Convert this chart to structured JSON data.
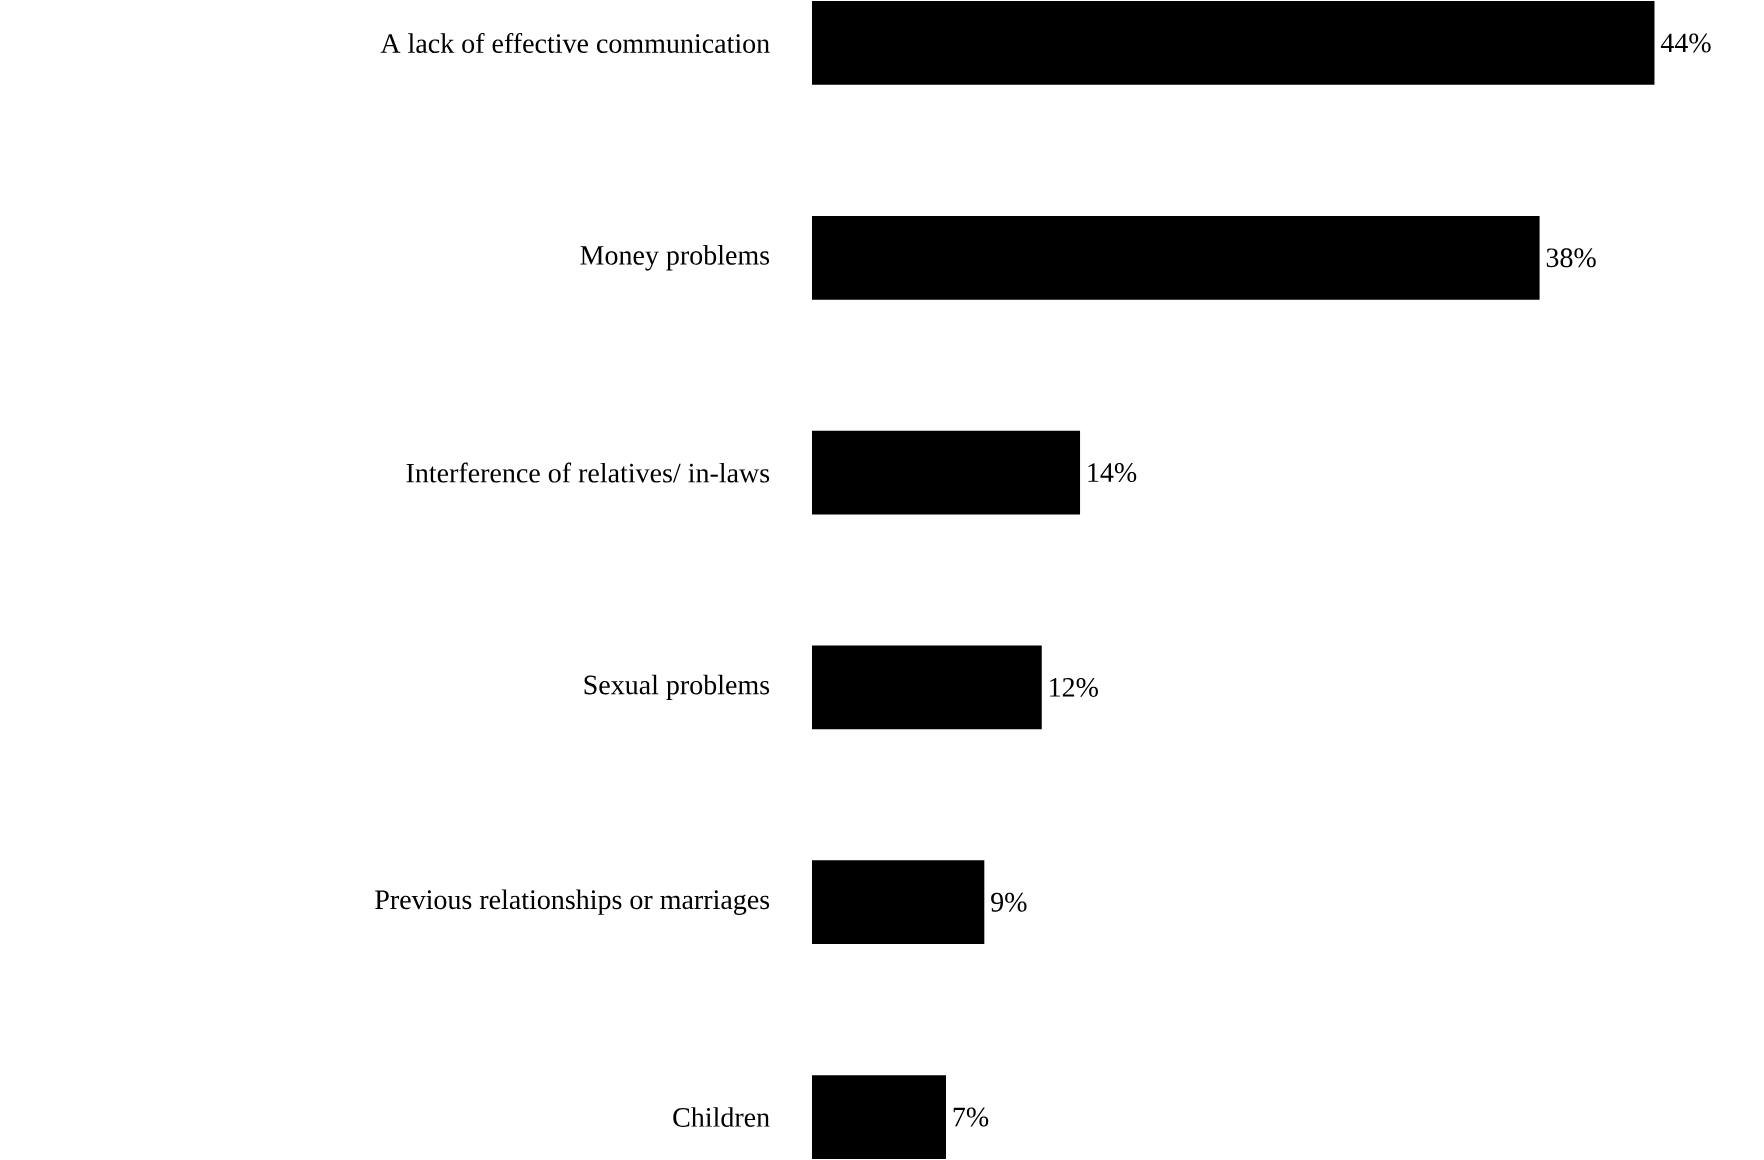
{
  "chart_data": {
    "type": "bar",
    "orientation": "horizontal",
    "categories": [
      "A lack of effective communication",
      "Money problems",
      "Interference of relatives/ in-laws",
      "Sexual problems",
      "Previous relationships or marriages",
      "Children"
    ],
    "values": [
      44,
      38,
      14,
      12,
      9,
      7
    ],
    "value_labels": [
      "44%",
      "38%",
      "14%",
      "12%",
      "9%",
      "7%"
    ],
    "color": "#000000"
  }
}
